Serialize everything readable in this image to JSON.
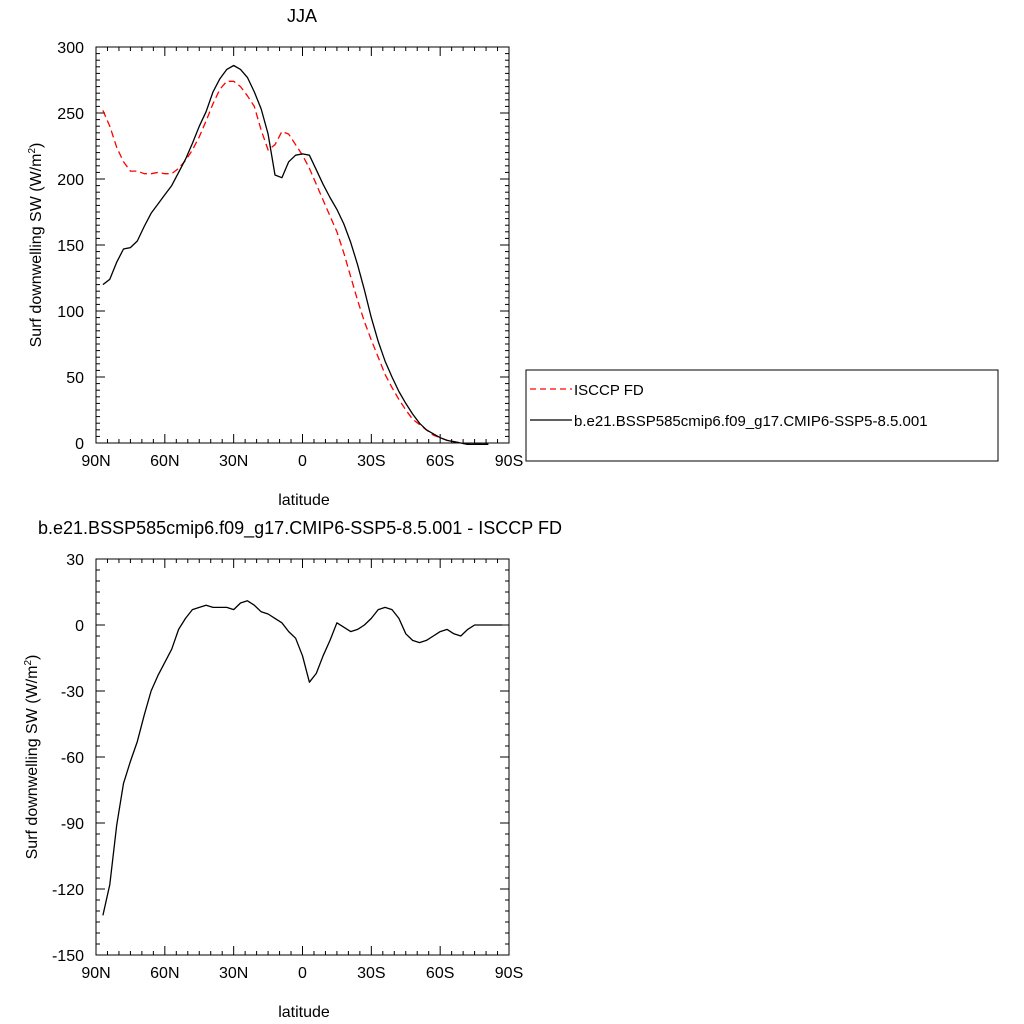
{
  "chart_data": [
    {
      "type": "line",
      "title": "JJA",
      "xlabel": "latitude",
      "ylabel": "Surf downwelling SW (W/m",
      "ylabel_sup": "2",
      "ylabel_end": ")",
      "xlim": [
        90,
        -90
      ],
      "ylim": [
        0,
        300
      ],
      "xticks": [
        90,
        60,
        30,
        0,
        -30,
        -60,
        -90
      ],
      "xtick_labels": [
        "90N",
        "60N",
        "30N",
        "0",
        "30S",
        "60S",
        "90S"
      ],
      "yticks": [
        0,
        50,
        100,
        150,
        200,
        250,
        300
      ],
      "ytick_labels": [
        "0",
        "50",
        "100",
        "150",
        "200",
        "250",
        "300"
      ],
      "legend_position": "right",
      "series": [
        {
          "name": "ISCCP FD",
          "color": "#ff0000",
          "dash": "dashed",
          "x": [
            87,
            84,
            81,
            78,
            75,
            72,
            69,
            66,
            63,
            60,
            57,
            54,
            51,
            48,
            45,
            42,
            39,
            36,
            33,
            30,
            27,
            24,
            21,
            18,
            15,
            12,
            9,
            6,
            3,
            0,
            -3,
            -6,
            -9,
            -12,
            -15,
            -18,
            -21,
            -24,
            -27,
            -30,
            -33,
            -36,
            -39,
            -42,
            -45,
            -48,
            -51,
            -54,
            -57,
            -60,
            -63,
            -66,
            -69,
            -72,
            -75,
            -78,
            -81
          ],
          "y": [
            252,
            240,
            224,
            213,
            206,
            206,
            204,
            204,
            205,
            204,
            204,
            208,
            214,
            222,
            232,
            244,
            257,
            268,
            274,
            274,
            270,
            263,
            255,
            237,
            222,
            226,
            236,
            234,
            226,
            218,
            208,
            196,
            184,
            172,
            160,
            144,
            126,
            108,
            92,
            78,
            65,
            52,
            42,
            33,
            25,
            18,
            14,
            10,
            6,
            4,
            2,
            1,
            0,
            -1,
            -1,
            -1,
            -1
          ]
        },
        {
          "name": "b.e21.BSSP585cmip6.f09_g17.CMIP6-SSP5-8.5.001",
          "color": "#000000",
          "dash": "solid",
          "x": [
            87,
            84,
            81,
            78,
            75,
            72,
            69,
            66,
            63,
            60,
            57,
            54,
            51,
            48,
            45,
            42,
            39,
            36,
            33,
            30,
            27,
            24,
            21,
            18,
            15,
            12,
            9,
            6,
            3,
            0,
            -3,
            -6,
            -9,
            -12,
            -15,
            -18,
            -21,
            -24,
            -27,
            -30,
            -33,
            -36,
            -39,
            -42,
            -45,
            -48,
            -51,
            -54,
            -57,
            -60,
            -63,
            -66,
            -69,
            -72,
            -75,
            -78,
            -81
          ],
          "y": [
            120,
            124,
            137,
            147,
            148,
            153,
            164,
            174,
            181,
            188,
            195,
            205,
            215,
            227,
            240,
            251,
            266,
            276,
            283,
            286,
            283,
            277,
            266,
            253,
            234,
            203,
            201,
            213,
            218,
            219,
            218,
            207,
            196,
            186,
            177,
            166,
            152,
            135,
            116,
            95,
            77,
            62,
            50,
            39,
            30,
            22,
            15,
            10,
            7,
            4,
            2,
            1,
            0,
            -1,
            -1,
            -1,
            -1
          ]
        }
      ]
    },
    {
      "type": "line",
      "title": "b.e21.BSSP585cmip6.f09_g17.CMIP6-SSP5-8.5.001 - ISCCP FD",
      "xlabel": "latitude",
      "ylabel": "Surf downwelling SW (W/m",
      "ylabel_sup": "2",
      "ylabel_end": ")",
      "xlim": [
        90,
        -90
      ],
      "ylim": [
        -150,
        30
      ],
      "xticks": [
        90,
        60,
        30,
        0,
        -30,
        -60,
        -90
      ],
      "xtick_labels": [
        "90N",
        "60N",
        "30N",
        "0",
        "30S",
        "60S",
        "90S"
      ],
      "yticks": [
        -150,
        -120,
        -90,
        -60,
        -30,
        0,
        30
      ],
      "ytick_labels": [
        "-150",
        "-120",
        "-90",
        "-60",
        "-30",
        "0",
        "30"
      ],
      "series": [
        {
          "color": "#000000",
          "dash": "solid",
          "x": [
            87,
            84,
            81,
            78,
            75,
            72,
            69,
            66,
            63,
            60,
            57,
            54,
            51,
            48,
            45,
            42,
            39,
            36,
            33,
            30,
            27,
            24,
            21,
            18,
            15,
            12,
            9,
            6,
            3,
            0,
            -3,
            -6,
            -9,
            -12,
            -15,
            -18,
            -21,
            -24,
            -27,
            -30,
            -33,
            -36,
            -39,
            -42,
            -45,
            -48,
            -51,
            -54,
            -57,
            -60,
            -63,
            -66,
            -69,
            -72,
            -75,
            -78,
            -81,
            -84,
            -87
          ],
          "y": [
            -132,
            -118,
            -91,
            -72,
            -62,
            -53,
            -41,
            -30,
            -23,
            -17,
            -11,
            -2,
            3,
            7,
            8,
            9,
            8,
            8,
            8,
            7,
            10,
            11,
            9,
            6,
            5,
            3,
            1,
            -3,
            -6,
            -14,
            -26,
            -22,
            -14,
            -7,
            1,
            -1,
            -3,
            -2,
            0,
            3,
            7,
            8,
            7,
            3,
            -4,
            -7,
            -8,
            -7,
            -5,
            -3,
            -2,
            -4,
            -5,
            -2,
            0,
            0,
            0,
            0,
            0
          ]
        }
      ]
    }
  ]
}
